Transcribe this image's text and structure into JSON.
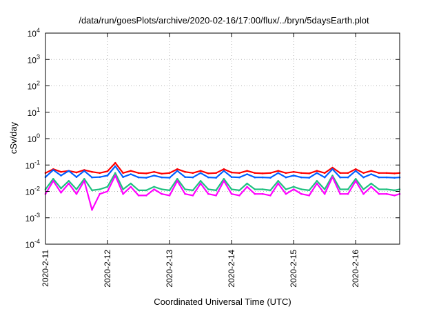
{
  "chart_data": {
    "type": "line",
    "title": "/data/run/goesPlots/archive/2020-02-16/17:00/flux/../bryn/5daysEarth.plot",
    "xlabel": "Coordinated Universal Time (UTC)",
    "ylabel": "cSv/day",
    "yscale": "log",
    "ylim": [
      0.0001,
      10000
    ],
    "xlim": [
      "2020-02-11",
      "2020-02-16 17:00"
    ],
    "grid": true,
    "legend": "none",
    "x_ticks": [
      "2020-2-11",
      "2020-2-12",
      "2020-2-13",
      "2020-2-14",
      "2020-2-15",
      "2020-2-16"
    ],
    "y_ticks": [
      {
        "value": 0.0001,
        "base": "10",
        "exp": "-4"
      },
      {
        "value": 0.001,
        "base": "10",
        "exp": "-3"
      },
      {
        "value": 0.01,
        "base": "10",
        "exp": "-2"
      },
      {
        "value": 0.1,
        "base": "10",
        "exp": "-1"
      },
      {
        "value": 1,
        "base": "10",
        "exp": "0"
      },
      {
        "value": 10,
        "base": "10",
        "exp": "1"
      },
      {
        "value": 100,
        "base": "10",
        "exp": "2"
      },
      {
        "value": 1000,
        "base": "10",
        "exp": "3"
      },
      {
        "value": 10000,
        "base": "10",
        "exp": "4"
      }
    ],
    "series": [
      {
        "color": "#ff0000",
        "x": [
          "2020-02-11 00:00",
          "2020-02-11 03:00",
          "2020-02-11 06:00",
          "2020-02-11 09:00",
          "2020-02-11 12:00",
          "2020-02-11 15:00",
          "2020-02-11 18:00",
          "2020-02-11 21:00",
          "2020-02-12 00:00",
          "2020-02-12 03:00",
          "2020-02-12 06:00",
          "2020-02-12 09:00",
          "2020-02-12 12:00",
          "2020-02-12 15:00",
          "2020-02-12 18:00",
          "2020-02-12 21:00",
          "2020-02-13 00:00",
          "2020-02-13 03:00",
          "2020-02-13 06:00",
          "2020-02-13 09:00",
          "2020-02-13 12:00",
          "2020-02-13 15:00",
          "2020-02-13 18:00",
          "2020-02-13 21:00",
          "2020-02-14 00:00",
          "2020-02-14 03:00",
          "2020-02-14 06:00",
          "2020-02-14 09:00",
          "2020-02-14 12:00",
          "2020-02-14 15:00",
          "2020-02-14 18:00",
          "2020-02-14 21:00",
          "2020-02-15 00:00",
          "2020-02-15 03:00",
          "2020-02-15 06:00",
          "2020-02-15 09:00",
          "2020-02-15 12:00",
          "2020-02-15 15:00",
          "2020-02-15 18:00",
          "2020-02-15 21:00",
          "2020-02-16 00:00",
          "2020-02-16 03:00",
          "2020-02-16 06:00",
          "2020-02-16 09:00",
          "2020-02-16 12:00",
          "2020-02-16 15:00",
          "2020-02-16 17:00"
        ],
        "values": [
          0.05,
          0.07,
          0.055,
          0.06,
          0.052,
          0.065,
          0.055,
          0.05,
          0.058,
          0.12,
          0.05,
          0.06,
          0.05,
          0.048,
          0.055,
          0.047,
          0.05,
          0.07,
          0.055,
          0.05,
          0.06,
          0.048,
          0.05,
          0.07,
          0.052,
          0.05,
          0.06,
          0.05,
          0.048,
          0.05,
          0.06,
          0.05,
          0.055,
          0.05,
          0.048,
          0.06,
          0.05,
          0.08,
          0.05,
          0.05,
          0.07,
          0.05,
          0.06,
          0.05,
          0.05,
          0.048,
          0.05
        ]
      },
      {
        "color": "#0060ff",
        "x": [
          "2020-02-11 00:00",
          "2020-02-11 03:00",
          "2020-02-11 06:00",
          "2020-02-11 09:00",
          "2020-02-11 12:00",
          "2020-02-11 15:00",
          "2020-02-11 18:00",
          "2020-02-11 21:00",
          "2020-02-12 00:00",
          "2020-02-12 03:00",
          "2020-02-12 06:00",
          "2020-02-12 09:00",
          "2020-02-12 12:00",
          "2020-02-12 15:00",
          "2020-02-12 18:00",
          "2020-02-12 21:00",
          "2020-02-13 00:00",
          "2020-02-13 03:00",
          "2020-02-13 06:00",
          "2020-02-13 09:00",
          "2020-02-13 12:00",
          "2020-02-13 15:00",
          "2020-02-13 18:00",
          "2020-02-13 21:00",
          "2020-02-14 00:00",
          "2020-02-14 03:00",
          "2020-02-14 06:00",
          "2020-02-14 09:00",
          "2020-02-14 12:00",
          "2020-02-14 15:00",
          "2020-02-14 18:00",
          "2020-02-14 21:00",
          "2020-02-15 00:00",
          "2020-02-15 03:00",
          "2020-02-15 06:00",
          "2020-02-15 09:00",
          "2020-02-15 12:00",
          "2020-02-15 15:00",
          "2020-02-15 18:00",
          "2020-02-15 21:00",
          "2020-02-16 00:00",
          "2020-02-16 03:00",
          "2020-02-16 06:00",
          "2020-02-16 09:00",
          "2020-02-16 12:00",
          "2020-02-16 15:00",
          "2020-02-16 17:00"
        ],
        "values": [
          0.035,
          0.065,
          0.04,
          0.06,
          0.035,
          0.06,
          0.034,
          0.035,
          0.04,
          0.09,
          0.035,
          0.045,
          0.034,
          0.033,
          0.04,
          0.034,
          0.033,
          0.06,
          0.035,
          0.034,
          0.05,
          0.034,
          0.033,
          0.06,
          0.035,
          0.034,
          0.045,
          0.034,
          0.034,
          0.033,
          0.05,
          0.034,
          0.04,
          0.034,
          0.033,
          0.05,
          0.034,
          0.07,
          0.034,
          0.034,
          0.06,
          0.034,
          0.045,
          0.034,
          0.034,
          0.033,
          0.034
        ]
      },
      {
        "color": "#20c080",
        "x": [
          "2020-02-11 00:00",
          "2020-02-11 03:00",
          "2020-02-11 06:00",
          "2020-02-11 09:00",
          "2020-02-11 12:00",
          "2020-02-11 15:00",
          "2020-02-11 18:00",
          "2020-02-11 21:00",
          "2020-02-12 00:00",
          "2020-02-12 03:00",
          "2020-02-12 06:00",
          "2020-02-12 09:00",
          "2020-02-12 12:00",
          "2020-02-12 15:00",
          "2020-02-12 18:00",
          "2020-02-12 21:00",
          "2020-02-13 00:00",
          "2020-02-13 03:00",
          "2020-02-13 06:00",
          "2020-02-13 09:00",
          "2020-02-13 12:00",
          "2020-02-13 15:00",
          "2020-02-13 18:00",
          "2020-02-13 21:00",
          "2020-02-14 00:00",
          "2020-02-14 03:00",
          "2020-02-14 06:00",
          "2020-02-14 09:00",
          "2020-02-14 12:00",
          "2020-02-14 15:00",
          "2020-02-14 18:00",
          "2020-02-14 21:00",
          "2020-02-15 00:00",
          "2020-02-15 03:00",
          "2020-02-15 06:00",
          "2020-02-15 09:00",
          "2020-02-15 12:00",
          "2020-02-15 15:00",
          "2020-02-15 18:00",
          "2020-02-15 21:00",
          "2020-02-16 00:00",
          "2020-02-16 03:00",
          "2020-02-16 06:00",
          "2020-02-16 09:00",
          "2020-02-16 12:00",
          "2020-02-16 15:00",
          "2020-02-16 17:00"
        ],
        "values": [
          0.012,
          0.03,
          0.013,
          0.025,
          0.012,
          0.03,
          0.011,
          0.012,
          0.015,
          0.05,
          0.012,
          0.02,
          0.011,
          0.011,
          0.015,
          0.012,
          0.011,
          0.03,
          0.012,
          0.011,
          0.025,
          0.012,
          0.011,
          0.03,
          0.012,
          0.011,
          0.02,
          0.012,
          0.012,
          0.011,
          0.025,
          0.012,
          0.015,
          0.012,
          0.011,
          0.025,
          0.012,
          0.04,
          0.012,
          0.012,
          0.03,
          0.012,
          0.02,
          0.012,
          0.012,
          0.011,
          0.012
        ]
      },
      {
        "color": "#ff00ff",
        "x": [
          "2020-02-11 00:00",
          "2020-02-11 03:00",
          "2020-02-11 06:00",
          "2020-02-11 09:00",
          "2020-02-11 12:00",
          "2020-02-11 15:00",
          "2020-02-11 18:00",
          "2020-02-11 21:00",
          "2020-02-12 00:00",
          "2020-02-12 03:00",
          "2020-02-12 06:00",
          "2020-02-12 09:00",
          "2020-02-12 12:00",
          "2020-02-12 15:00",
          "2020-02-12 18:00",
          "2020-02-12 21:00",
          "2020-02-13 00:00",
          "2020-02-13 03:00",
          "2020-02-13 06:00",
          "2020-02-13 09:00",
          "2020-02-13 12:00",
          "2020-02-13 15:00",
          "2020-02-13 18:00",
          "2020-02-13 21:00",
          "2020-02-14 00:00",
          "2020-02-14 03:00",
          "2020-02-14 06:00",
          "2020-02-14 09:00",
          "2020-02-14 12:00",
          "2020-02-14 15:00",
          "2020-02-14 18:00",
          "2020-02-14 21:00",
          "2020-02-15 00:00",
          "2020-02-15 03:00",
          "2020-02-15 06:00",
          "2020-02-15 09:00",
          "2020-02-15 12:00",
          "2020-02-15 15:00",
          "2020-02-15 18:00",
          "2020-02-15 21:00",
          "2020-02-16 00:00",
          "2020-02-16 03:00",
          "2020-02-16 06:00",
          "2020-02-16 09:00",
          "2020-02-16 12:00",
          "2020-02-16 15:00",
          "2020-02-16 17:00"
        ],
        "values": [
          0.008,
          0.025,
          0.009,
          0.02,
          0.008,
          0.025,
          0.002,
          0.008,
          0.01,
          0.04,
          0.008,
          0.015,
          0.007,
          0.007,
          0.012,
          0.008,
          0.007,
          0.025,
          0.008,
          0.007,
          0.02,
          0.008,
          0.007,
          0.025,
          0.008,
          0.007,
          0.015,
          0.008,
          0.008,
          0.007,
          0.02,
          0.008,
          0.012,
          0.008,
          0.007,
          0.02,
          0.008,
          0.035,
          0.008,
          0.008,
          0.025,
          0.008,
          0.015,
          0.008,
          0.008,
          0.007,
          0.008
        ]
      }
    ]
  }
}
